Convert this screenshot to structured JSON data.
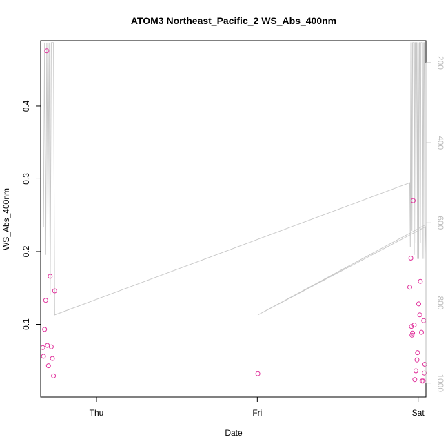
{
  "chart_data": {
    "type": "scatter",
    "title": "ATOM3 Northeast_Pacific_2 WS_Abs_400nm",
    "xlabel": "Date",
    "ylabel": "WS_Abs_400nm",
    "x_ticks": [
      "Thu",
      "Fri",
      "Sat"
    ],
    "xlim": [
      "Wed 15:40",
      "Sat 01:10"
    ],
    "ylim": [
      0.0,
      0.49
    ],
    "y_ticks": [
      "0.1",
      "0.2",
      "0.3",
      "0.4"
    ],
    "y2_ticks": [
      "200",
      "400",
      "600",
      "800",
      "1000"
    ],
    "y2lim_reversed": [
      1035,
      145
    ],
    "grid": false,
    "colors": {
      "points": "#e0309a",
      "line": "#c8c8c8",
      "right_axis": "#bdbdbd"
    },
    "series": [
      {
        "marker": "circle",
        "x": [
          "Wed 16:00",
          "Wed 16:05",
          "Wed 16:15",
          "Wed 16:25",
          "Wed 16:35",
          "Wed 16:40",
          "Wed 16:50",
          "Wed 17:05",
          "Wed 17:15",
          "Wed 17:25",
          "Wed 17:35",
          "Wed 17:45",
          "Fri 00:05",
          "Fri 22:45",
          "Fri 22:55",
          "Fri 23:00",
          "Fri 23:05",
          "Fri 23:10",
          "Fri 23:15",
          "Fri 23:25",
          "Fri 23:30",
          "Fri 23:40",
          "Fri 23:50",
          "Fri 23:55",
          "Sat 00:05",
          "Sat 00:15",
          "Sat 00:20",
          "Sat 00:30",
          "Sat 00:35",
          "Sat 00:45",
          "Sat 00:50",
          "Sat 00:55",
          "Sat 01:00"
        ],
        "y": [
          0.068,
          0.056,
          0.093,
          0.133,
          0.476,
          0.071,
          0.043,
          0.166,
          0.069,
          0.053,
          0.029,
          0.146,
          0.032,
          0.151,
          0.191,
          0.097,
          0.085,
          0.088,
          0.27,
          0.099,
          0.024,
          0.036,
          0.051,
          0.061,
          0.128,
          0.113,
          0.159,
          0.089,
          0.022,
          0.022,
          0.105,
          0.033,
          0.045
        ]
      },
      {
        "name": "",
        "axis": "right",
        "x": [
          "Wed 16:05",
          "Wed 16:15",
          "Wed 16:25",
          "Wed 16:35",
          "Wed 16:45",
          "Wed 16:55",
          "Wed 17:05",
          "Wed 17:15",
          "Wed 17:25",
          "Wed 17:35",
          "Wed 17:45",
          "Fri 22:45",
          "Fri 22:50",
          "Fri 22:55",
          "Fri 23:00",
          "Fri 23:05",
          "Fri 23:10",
          "Fri 23:15",
          "Fri 23:20",
          "Fri 23:25",
          "Fri 23:30",
          "Fri 23:35",
          "Fri 23:40",
          "Fri 23:45",
          "Fri 23:50",
          "Fri 23:55",
          "Sat 00:00",
          "Sat 00:05",
          "Sat 00:10",
          "Sat 00:15",
          "Sat 00:20",
          "Sat 00:25",
          "Sat 00:30",
          "Sat 00:35",
          "Sat 00:40",
          "Sat 00:45",
          "Sat 00:50",
          "Sat 00:55",
          "Sat 01:00",
          "Sat 01:05",
          "Fri 00:05",
          "Sat 01:05"
        ],
        "y": [
          610,
          150,
          680,
          150,
          590,
          150,
          780,
          150,
          150,
          150,
          830,
          500,
          660,
          150,
          150,
          620,
          150,
          150,
          150,
          680,
          150,
          150,
          650,
          150,
          150,
          690,
          150,
          690,
          150,
          150,
          650,
          150,
          150,
          150,
          150,
          690,
          150,
          150,
          690,
          610,
          830,
          605
        ]
      }
    ]
  }
}
